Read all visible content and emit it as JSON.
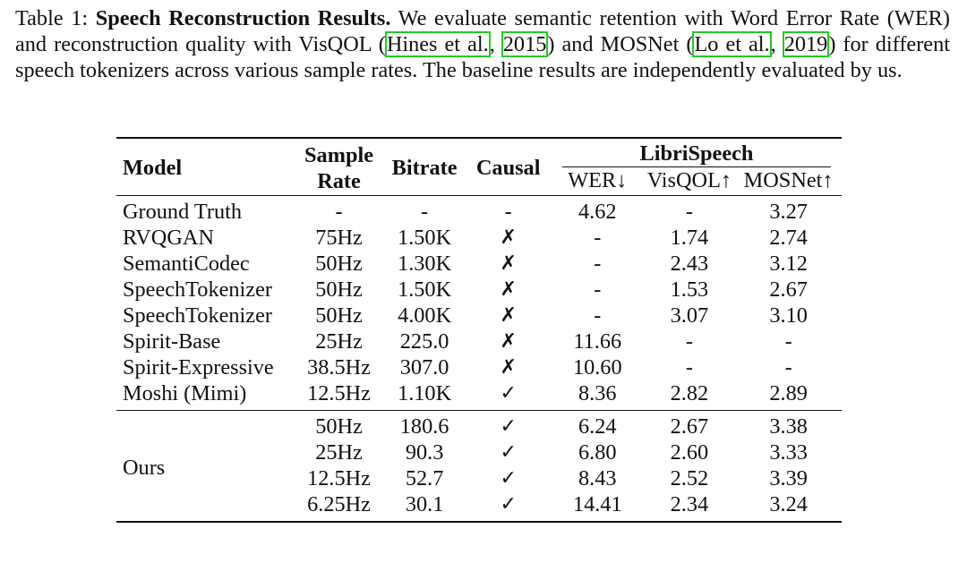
{
  "caption": {
    "label": "Table 1: ",
    "title": "Speech Reconstruction Results.",
    "text1": " We evaluate semantic retention with Word Error Rate (WER) and reconstruction quality with VisQOL (",
    "cite1_author": "Hines et al.",
    "sep1": ", ",
    "cite1_year": "2015",
    "text2": ") and MOSNet (",
    "cite2_author": "Lo et al.",
    "sep2": ", ",
    "cite2_year": "2019",
    "text3": ") for different speech tokenizers across various sample rates. The baseline results are independently evaluated by us."
  },
  "header": {
    "model": "Model",
    "sample_rate_line1": "Sample",
    "sample_rate_line2": "Rate",
    "bitrate": "Bitrate",
    "causal": "Causal",
    "group": "LibriSpeech",
    "wer": "WER↓",
    "visqol": "VisQOL↑",
    "mosnet": "MOSNet↑"
  },
  "rows": [
    {
      "model": "Ground Truth",
      "rate": "-",
      "bitrate": "-",
      "causal": "-",
      "wer": "4.62",
      "visqol": "-",
      "mosnet": "3.27"
    },
    {
      "model": "RVQGAN",
      "rate": "75Hz",
      "bitrate": "1.50K",
      "causal": "✗",
      "wer": "-",
      "visqol": "1.74",
      "mosnet": "2.74"
    },
    {
      "model": "SemantiCodec",
      "rate": "50Hz",
      "bitrate": "1.30K",
      "causal": "✗",
      "wer": "-",
      "visqol": "2.43",
      "mosnet": "3.12"
    },
    {
      "model": "SpeechTokenizer",
      "rate": "50Hz",
      "bitrate": "1.50K",
      "causal": "✗",
      "wer": "-",
      "visqol": "1.53",
      "mosnet": "2.67"
    },
    {
      "model": "SpeechTokenizer",
      "rate": "50Hz",
      "bitrate": "4.00K",
      "causal": "✗",
      "wer": "-",
      "visqol": "3.07",
      "mosnet": "3.10"
    },
    {
      "model": "Spirit-Base",
      "rate": "25Hz",
      "bitrate": "225.0",
      "causal": "✗",
      "wer": "11.66",
      "visqol": "-",
      "mosnet": "-"
    },
    {
      "model": "Spirit-Expressive",
      "rate": "38.5Hz",
      "bitrate": "307.0",
      "causal": "✗",
      "wer": "10.60",
      "visqol": "-",
      "mosnet": "-"
    },
    {
      "model": "Moshi (Mimi)",
      "rate": "12.5Hz",
      "bitrate": "1.10K",
      "causal": "✓",
      "wer": "8.36",
      "visqol": "2.82",
      "mosnet": "2.89"
    }
  ],
  "ours": {
    "label": "Ours",
    "rows": [
      {
        "rate": "50Hz",
        "bitrate": "180.6",
        "causal": "✓",
        "wer": "6.24",
        "visqol": "2.67",
        "mosnet": "3.38"
      },
      {
        "rate": "25Hz",
        "bitrate": "90.3",
        "causal": "✓",
        "wer": "6.80",
        "visqol": "2.60",
        "mosnet": "3.33"
      },
      {
        "rate": "12.5Hz",
        "bitrate": "52.7",
        "causal": "✓",
        "wer": "8.43",
        "visqol": "2.52",
        "mosnet": "3.39"
      },
      {
        "rate": "6.25Hz",
        "bitrate": "30.1",
        "causal": "✓",
        "wer": "14.41",
        "visqol": "2.34",
        "mosnet": "3.24"
      }
    ]
  }
}
